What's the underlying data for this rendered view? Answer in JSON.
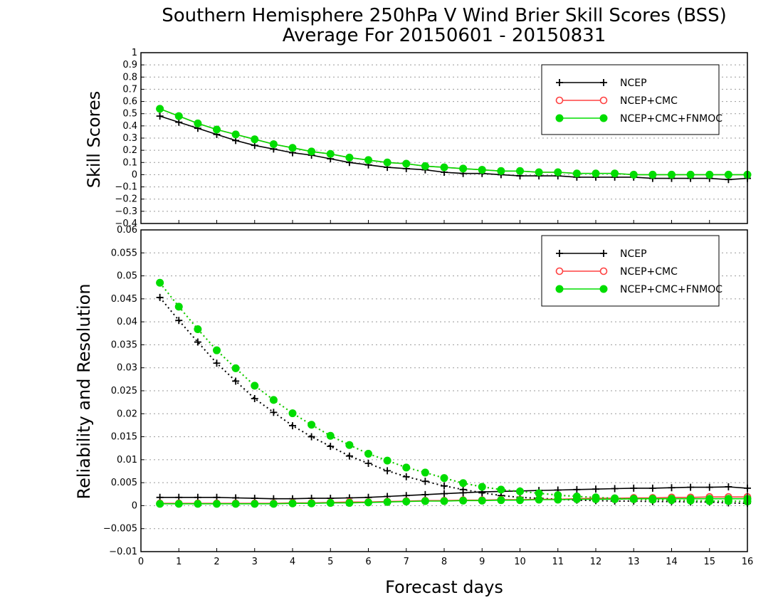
{
  "title_line1": "Southern Hemisphere 250hPa V Wind Brier Skill Scores (BSS)",
  "title_line2": "Average For 20150601 - 20150831",
  "xlabel": "Forecast days",
  "colors": {
    "NCEP": "#000000",
    "NCEP+CMC": "#ff4040",
    "NCEP+CMC+FNMOC": "#00dd00"
  },
  "chart_data": [
    {
      "type": "line",
      "ylabel": "Skill Scores",
      "ylim": [
        -0.4,
        1
      ],
      "yticks": [
        "1",
        "0.9",
        "0.8",
        "0.7",
        "0.6",
        "0.5",
        "0.4",
        "0.3",
        "0.2",
        "0.1",
        "0",
        "−0.1",
        "−0.2",
        "−0.3",
        "−0.4"
      ],
      "xlim": [
        0,
        16
      ],
      "xticks": [
        "0",
        "1",
        "2",
        "3",
        "4",
        "5",
        "6",
        "7",
        "8",
        "9",
        "10",
        "11",
        "12",
        "13",
        "14",
        "15",
        "16"
      ],
      "grid": true,
      "legend_position": "top-right",
      "x": [
        0.5,
        1,
        1.5,
        2,
        2.5,
        3,
        3.5,
        4,
        4.5,
        5,
        5.5,
        6,
        6.5,
        7,
        7.5,
        8,
        8.5,
        9,
        9.5,
        10,
        10.5,
        11,
        11.5,
        12,
        12.5,
        13,
        13.5,
        14,
        14.5,
        15,
        15.5,
        16
      ],
      "series": [
        {
          "name": "NCEP",
          "marker": "plus",
          "line": "solid",
          "values": [
            0.48,
            0.43,
            0.38,
            0.33,
            0.28,
            0.24,
            0.21,
            0.18,
            0.16,
            0.13,
            0.1,
            0.08,
            0.06,
            0.05,
            0.04,
            0.02,
            0.01,
            0.01,
            0.0,
            -0.01,
            -0.01,
            -0.01,
            -0.02,
            -0.02,
            -0.02,
            -0.02,
            -0.03,
            -0.03,
            -0.03,
            -0.03,
            -0.04,
            -0.03
          ]
        },
        {
          "name": "NCEP+CMC",
          "marker": "open-circle",
          "line": "solid",
          "values": [
            0.54,
            0.48,
            0.42,
            0.37,
            0.33,
            0.29,
            0.25,
            0.22,
            0.19,
            0.17,
            0.14,
            0.12,
            0.1,
            0.09,
            0.07,
            0.06,
            0.05,
            0.04,
            0.03,
            0.03,
            0.02,
            0.02,
            0.01,
            0.01,
            0.01,
            0.0,
            0.0,
            0.0,
            0.0,
            0.0,
            0.0,
            0.0
          ]
        },
        {
          "name": "NCEP+CMC+FNMOC",
          "marker": "filled-circle",
          "line": "solid",
          "values": [
            0.54,
            0.48,
            0.42,
            0.37,
            0.33,
            0.29,
            0.25,
            0.22,
            0.19,
            0.17,
            0.14,
            0.12,
            0.1,
            0.09,
            0.07,
            0.06,
            0.05,
            0.04,
            0.03,
            0.03,
            0.02,
            0.02,
            0.01,
            0.01,
            0.01,
            0.0,
            0.0,
            0.0,
            0.0,
            0.0,
            0.0,
            0.0
          ]
        }
      ]
    },
    {
      "type": "line",
      "ylabel": "Reliability and Resolution",
      "ylim": [
        -0.01,
        0.06
      ],
      "yticks": [
        "0.06",
        "0.055",
        "0.05",
        "0.045",
        "0.04",
        "0.035",
        "0.03",
        "0.025",
        "0.02",
        "0.015",
        "0.01",
        "0.005",
        "0",
        "−0.005",
        "−0.01"
      ],
      "xlim": [
        0,
        16
      ],
      "xticks": [
        "0",
        "1",
        "2",
        "3",
        "4",
        "5",
        "6",
        "7",
        "8",
        "9",
        "10",
        "11",
        "12",
        "13",
        "14",
        "15",
        "16"
      ],
      "grid": true,
      "legend_position": "top-right",
      "x": [
        0.5,
        1,
        1.5,
        2,
        2.5,
        3,
        3.5,
        4,
        4.5,
        5,
        5.5,
        6,
        6.5,
        7,
        7.5,
        8,
        8.5,
        9,
        9.5,
        10,
        10.5,
        11,
        11.5,
        12,
        12.5,
        13,
        13.5,
        14,
        14.5,
        15,
        15.5,
        16
      ],
      "series": [
        {
          "name": "NCEP",
          "component": "reliability",
          "marker": "plus",
          "line": "solid",
          "values": [
            0.0018,
            0.0018,
            0.0018,
            0.0018,
            0.0017,
            0.0016,
            0.0015,
            0.0015,
            0.0016,
            0.0016,
            0.0017,
            0.0018,
            0.002,
            0.0022,
            0.0024,
            0.0026,
            0.0028,
            0.003,
            0.0031,
            0.0032,
            0.0033,
            0.0034,
            0.0035,
            0.0036,
            0.0037,
            0.0038,
            0.0038,
            0.0039,
            0.004,
            0.004,
            0.0041,
            0.0038
          ]
        },
        {
          "name": "NCEP",
          "component": "resolution",
          "marker": "plus",
          "line": "dotted",
          "values": [
            0.0453,
            0.0403,
            0.0356,
            0.031,
            0.0271,
            0.0233,
            0.0203,
            0.0174,
            0.015,
            0.0129,
            0.0108,
            0.0092,
            0.0076,
            0.0063,
            0.0053,
            0.0043,
            0.0035,
            0.0028,
            0.0022,
            0.0018,
            0.0016,
            0.0014,
            0.0012,
            0.0011,
            0.001,
            0.001,
            0.0009,
            0.0009,
            0.0008,
            0.0008,
            0.0006,
            0.0005
          ]
        },
        {
          "name": "NCEP+CMC",
          "component": "reliability",
          "marker": "open-circle",
          "line": "solid",
          "values": [
            0.0005,
            0.0005,
            0.0005,
            0.0005,
            0.0005,
            0.0005,
            0.0005,
            0.0006,
            0.0006,
            0.0007,
            0.0008,
            0.0008,
            0.0009,
            0.001,
            0.0011,
            0.0011,
            0.0012,
            0.0012,
            0.0013,
            0.0013,
            0.0014,
            0.0014,
            0.0015,
            0.0016,
            0.0016,
            0.0017,
            0.0017,
            0.0018,
            0.0018,
            0.0019,
            0.0019,
            0.0019
          ]
        },
        {
          "name": "NCEP+CMC",
          "component": "resolution",
          "marker": "open-circle",
          "line": "dotted",
          "values": [
            0.0485,
            0.0433,
            0.0384,
            0.0338,
            0.0299,
            0.0261,
            0.023,
            0.0201,
            0.0176,
            0.0152,
            0.0132,
            0.0113,
            0.0098,
            0.0083,
            0.0072,
            0.006,
            0.0049,
            0.0041,
            0.0035,
            0.0031,
            0.0027,
            0.0023,
            0.002,
            0.0018,
            0.0016,
            0.0014,
            0.0013,
            0.0012,
            0.0011,
            0.001,
            0.001,
            0.0009
          ]
        },
        {
          "name": "NCEP+CMC+FNMOC",
          "component": "reliability",
          "marker": "filled-circle",
          "line": "solid",
          "values": [
            0.0004,
            0.0004,
            0.0004,
            0.0004,
            0.0004,
            0.0004,
            0.0004,
            0.0005,
            0.0005,
            0.0006,
            0.0006,
            0.0007,
            0.0008,
            0.0009,
            0.001,
            0.001,
            0.0011,
            0.0011,
            0.0012,
            0.0012,
            0.0013,
            0.0013,
            0.0014,
            0.0014,
            0.0014,
            0.0015,
            0.0015,
            0.0015,
            0.0015,
            0.0015,
            0.0015,
            0.0015
          ]
        },
        {
          "name": "NCEP+CMC+FNMOC",
          "component": "resolution",
          "marker": "filled-circle",
          "line": "dotted",
          "values": [
            0.0485,
            0.0433,
            0.0384,
            0.0338,
            0.0299,
            0.0261,
            0.023,
            0.0201,
            0.0176,
            0.0152,
            0.0132,
            0.0113,
            0.0098,
            0.0083,
            0.0072,
            0.006,
            0.0049,
            0.0041,
            0.0035,
            0.0031,
            0.0027,
            0.0023,
            0.002,
            0.0018,
            0.0016,
            0.0014,
            0.0013,
            0.0012,
            0.0011,
            0.001,
            0.001,
            0.0009
          ]
        }
      ]
    }
  ]
}
